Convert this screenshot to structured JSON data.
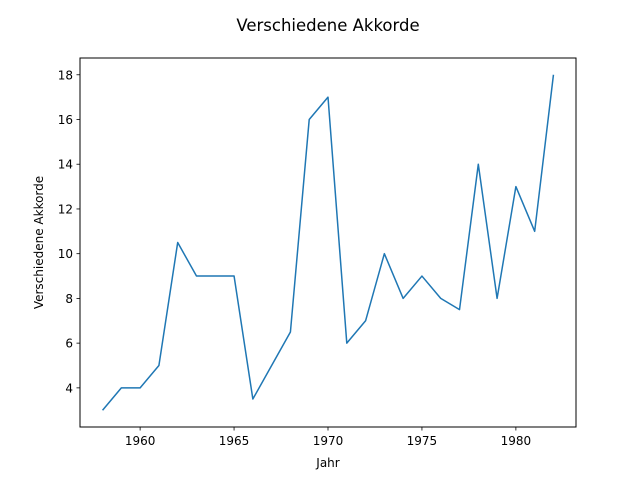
{
  "chart_data": {
    "type": "line",
    "title": "Verschiedene Akkorde",
    "xlabel": "Jahr",
    "ylabel": "Verschiedene Akkorde",
    "xlim": [
      1956.8,
      1983.2
    ],
    "ylim": [
      2.25,
      18.75
    ],
    "xticks": [
      1960,
      1965,
      1970,
      1975,
      1980
    ],
    "yticks": [
      4,
      6,
      8,
      10,
      12,
      14,
      16,
      18
    ],
    "grid": false,
    "series": [
      {
        "color": "#1f77b4",
        "x": [
          1958,
          1959,
          1960,
          1961,
          1962,
          1963,
          1964,
          1965,
          1966,
          1967,
          1968,
          1969,
          1970,
          1971,
          1972,
          1973,
          1974,
          1975,
          1976,
          1977,
          1978,
          1979,
          1980,
          1981,
          1982
        ],
        "y": [
          3,
          4,
          4,
          5,
          10.5,
          9,
          9,
          9,
          3.5,
          5,
          6.5,
          16,
          17,
          6,
          7,
          10,
          8,
          9,
          8,
          7.5,
          14,
          8,
          13,
          11,
          18
        ]
      }
    ]
  }
}
